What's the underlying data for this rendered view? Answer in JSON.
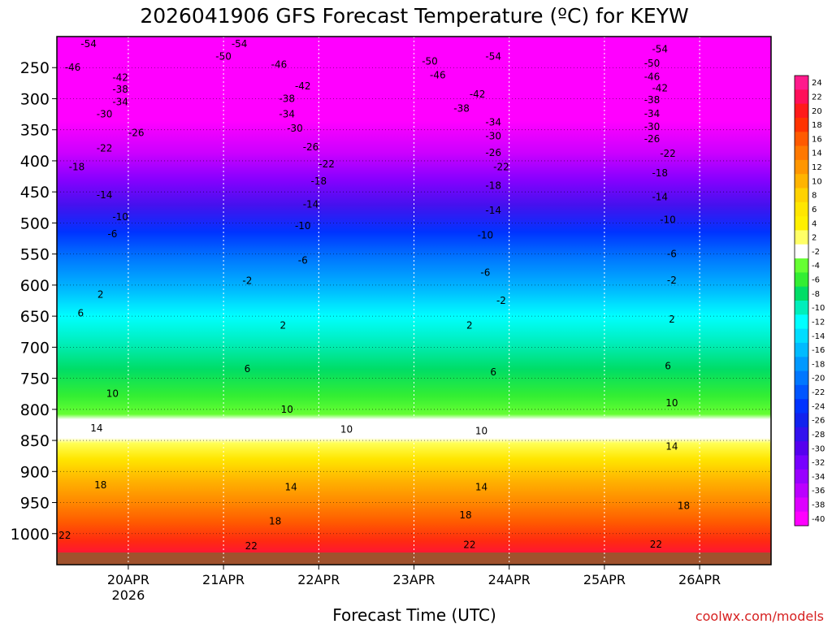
{
  "chart_data": {
    "type": "heatmap",
    "title": "2026041906 GFS Forecast Temperature (ºC) for KEYW",
    "xlabel": "Forecast Time (UTC)",
    "ylabel": "",
    "credit": "coolwx.com/models",
    "x_ticks": [
      {
        "label": "20APR",
        "sublabel": "2026",
        "hours": 18
      },
      {
        "label": "21APR",
        "sublabel": "",
        "hours": 42
      },
      {
        "label": "22APR",
        "sublabel": "",
        "hours": 66
      },
      {
        "label": "23APR",
        "sublabel": "",
        "hours": 90
      },
      {
        "label": "24APR",
        "sublabel": "",
        "hours": 114
      },
      {
        "label": "25APR",
        "sublabel": "",
        "hours": 138
      },
      {
        "label": "26APR",
        "sublabel": "",
        "hours": 162
      }
    ],
    "x_range_hours": [
      0,
      180
    ],
    "y_ticks": [
      "250",
      "300",
      "350",
      "400",
      "450",
      "500",
      "550",
      "600",
      "650",
      "700",
      "750",
      "800",
      "850",
      "900",
      "950",
      "1000"
    ],
    "y_range_hpa": [
      200,
      1050
    ],
    "colorbar_ticks": [
      "24",
      "22",
      "20",
      "18",
      "16",
      "14",
      "12",
      "10",
      "8",
      "6",
      "4",
      "2",
      "-2",
      "-4",
      "-6",
      "-8",
      "-10",
      "-12",
      "-14",
      "-16",
      "-18",
      "-20",
      "-22",
      "-24",
      "-26",
      "-28",
      "-30",
      "-32",
      "-34",
      "-36",
      "-38",
      "-40"
    ],
    "colorbar_colors": [
      "#ff1a8c",
      "#ff0f5a",
      "#ff1a1a",
      "#ff3300",
      "#ff5a00",
      "#ff7800",
      "#ff9600",
      "#ffb400",
      "#ffd200",
      "#ffe600",
      "#fff000",
      "#ffff66",
      "#ffffff",
      "#66ff33",
      "#33ee33",
      "#00dd66",
      "#00eebb",
      "#00ffff",
      "#00ddff",
      "#00bbff",
      "#0099ff",
      "#0077ff",
      "#0055ff",
      "#0033ff",
      "#1122ee",
      "#3311ee",
      "#5500ee",
      "#7700ff",
      "#9900ff",
      "#bb00ff",
      "#dd00ff",
      "#ff00ff"
    ],
    "ground_color": "#a0522d",
    "contour_labels": [
      {
        "value": "-54",
        "hours": 8,
        "hpa": 212
      },
      {
        "value": "-54",
        "hours": 46,
        "hpa": 212
      },
      {
        "value": "-54",
        "hours": 152,
        "hpa": 220
      },
      {
        "value": "-54",
        "hours": 110,
        "hpa": 232
      },
      {
        "value": "-50",
        "hours": 42,
        "hpa": 232
      },
      {
        "value": "-50",
        "hours": 94,
        "hpa": 240
      },
      {
        "value": "-50",
        "hours": 150,
        "hpa": 243
      },
      {
        "value": "-46",
        "hours": 4,
        "hpa": 250
      },
      {
        "value": "-46",
        "hours": 56,
        "hpa": 245
      },
      {
        "value": "-46",
        "hours": 96,
        "hpa": 262
      },
      {
        "value": "-46",
        "hours": 150,
        "hpa": 265
      },
      {
        "value": "-42",
        "hours": 16,
        "hpa": 266
      },
      {
        "value": "-42",
        "hours": 62,
        "hpa": 280
      },
      {
        "value": "-42",
        "hours": 106,
        "hpa": 293
      },
      {
        "value": "-42",
        "hours": 152,
        "hpa": 283
      },
      {
        "value": "-38",
        "hours": 16,
        "hpa": 285
      },
      {
        "value": "-38",
        "hours": 58,
        "hpa": 300
      },
      {
        "value": "-38",
        "hours": 102,
        "hpa": 316
      },
      {
        "value": "-38",
        "hours": 150,
        "hpa": 302
      },
      {
        "value": "-34",
        "hours": 16,
        "hpa": 305
      },
      {
        "value": "-34",
        "hours": 58,
        "hpa": 325
      },
      {
        "value": "-34",
        "hours": 110,
        "hpa": 338
      },
      {
        "value": "-34",
        "hours": 150,
        "hpa": 324
      },
      {
        "value": "-30",
        "hours": 12,
        "hpa": 325
      },
      {
        "value": "-30",
        "hours": 60,
        "hpa": 348
      },
      {
        "value": "-30",
        "hours": 110,
        "hpa": 360
      },
      {
        "value": "-30",
        "hours": 150,
        "hpa": 345
      },
      {
        "value": "-26",
        "hours": 20,
        "hpa": 355
      },
      {
        "value": "-26",
        "hours": 64,
        "hpa": 378
      },
      {
        "value": "-26",
        "hours": 110,
        "hpa": 387
      },
      {
        "value": "-26",
        "hours": 150,
        "hpa": 365
      },
      {
        "value": "-22",
        "hours": 12,
        "hpa": 380
      },
      {
        "value": "-22",
        "hours": 68,
        "hpa": 405
      },
      {
        "value": "-22",
        "hours": 112,
        "hpa": 410
      },
      {
        "value": "-22",
        "hours": 154,
        "hpa": 388
      },
      {
        "value": "-18",
        "hours": 5,
        "hpa": 410
      },
      {
        "value": "-18",
        "hours": 66,
        "hpa": 433
      },
      {
        "value": "-18",
        "hours": 110,
        "hpa": 440
      },
      {
        "value": "-18",
        "hours": 152,
        "hpa": 420
      },
      {
        "value": "-14",
        "hours": 12,
        "hpa": 455
      },
      {
        "value": "-14",
        "hours": 64,
        "hpa": 470
      },
      {
        "value": "-14",
        "hours": 110,
        "hpa": 480
      },
      {
        "value": "-14",
        "hours": 152,
        "hpa": 458
      },
      {
        "value": "-10",
        "hours": 16,
        "hpa": 490
      },
      {
        "value": "-10",
        "hours": 62,
        "hpa": 505
      },
      {
        "value": "-10",
        "hours": 108,
        "hpa": 520
      },
      {
        "value": "-10",
        "hours": 154,
        "hpa": 495
      },
      {
        "value": "-6",
        "hours": 14,
        "hpa": 518
      },
      {
        "value": "-6",
        "hours": 62,
        "hpa": 560
      },
      {
        "value": "-6",
        "hours": 108,
        "hpa": 580
      },
      {
        "value": "-6",
        "hours": 155,
        "hpa": 550
      },
      {
        "value": "-2",
        "hours": 48,
        "hpa": 593
      },
      {
        "value": "-2",
        "hours": 112,
        "hpa": 625
      },
      {
        "value": "-2",
        "hours": 155,
        "hpa": 592
      },
      {
        "value": "2",
        "hours": 11,
        "hpa": 615
      },
      {
        "value": "2",
        "hours": 57,
        "hpa": 665
      },
      {
        "value": "2",
        "hours": 104,
        "hpa": 665
      },
      {
        "value": "2",
        "hours": 155,
        "hpa": 655
      },
      {
        "value": "6",
        "hours": 6,
        "hpa": 645
      },
      {
        "value": "6",
        "hours": 48,
        "hpa": 735
      },
      {
        "value": "6",
        "hours": 110,
        "hpa": 740
      },
      {
        "value": "6",
        "hours": 154,
        "hpa": 730
      },
      {
        "value": "10",
        "hours": 14,
        "hpa": 775
      },
      {
        "value": "10",
        "hours": 58,
        "hpa": 800
      },
      {
        "value": "10",
        "hours": 73,
        "hpa": 832
      },
      {
        "value": "10",
        "hours": 107,
        "hpa": 835
      },
      {
        "value": "10",
        "hours": 155,
        "hpa": 790
      },
      {
        "value": "14",
        "hours": 10,
        "hpa": 830
      },
      {
        "value": "14",
        "hours": 59,
        "hpa": 925
      },
      {
        "value": "14",
        "hours": 107,
        "hpa": 925
      },
      {
        "value": "14",
        "hours": 155,
        "hpa": 860
      },
      {
        "value": "18",
        "hours": 11,
        "hpa": 922
      },
      {
        "value": "18",
        "hours": 55,
        "hpa": 980
      },
      {
        "value": "18",
        "hours": 103,
        "hpa": 970
      },
      {
        "value": "18",
        "hours": 158,
        "hpa": 955
      },
      {
        "value": "22",
        "hours": 2,
        "hpa": 1003
      },
      {
        "value": "22",
        "hours": 49,
        "hpa": 1020
      },
      {
        "value": "22",
        "hours": 104,
        "hpa": 1018
      },
      {
        "value": "22",
        "hours": 151,
        "hpa": 1017
      }
    ]
  }
}
